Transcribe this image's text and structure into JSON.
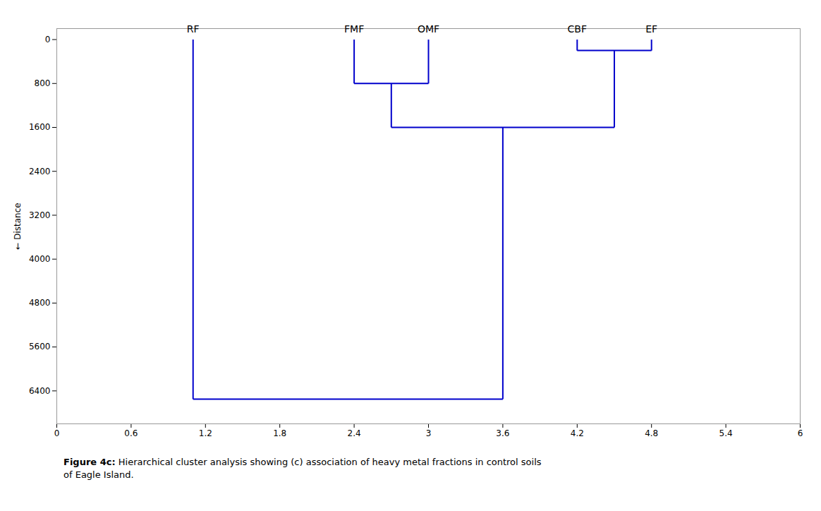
{
  "chart_data": {
    "type": "dendrogram",
    "ylabel": "Distance",
    "xlim": [
      0,
      6
    ],
    "ylim": [
      7000,
      -200
    ],
    "xticks": [
      0,
      0.6,
      1.2,
      1.8,
      2.4,
      3,
      3.6,
      4.2,
      4.8,
      5.4,
      6
    ],
    "yticks": [
      0,
      800,
      1600,
      2400,
      3200,
      4000,
      4800,
      5600,
      6400
    ],
    "color": "#0000CC",
    "grid": false,
    "caption_label": "Figure 4c:",
    "caption": "Hierarchical cluster analysis showing (c) association of heavy metal fractions in control soils\nof Eagle Island.",
    "leaves": [
      {
        "name": "RF",
        "x": 1.1,
        "height": 0
      },
      {
        "name": "FMF",
        "x": 2.4,
        "height": 0
      },
      {
        "name": "OMF",
        "x": 3.0,
        "height": 0
      },
      {
        "name": "CBF",
        "x": 4.2,
        "height": 0
      },
      {
        "name": "EF",
        "x": 4.8,
        "height": 0
      }
    ],
    "merges": [
      {
        "left_x": 2.4,
        "right_x": 3.0,
        "merge_x": 2.7,
        "height": 800
      },
      {
        "left_x": 4.2,
        "right_x": 4.8,
        "merge_x": 4.5,
        "height": 200
      },
      {
        "left_x": 2.7,
        "right_x": 4.5,
        "merge_x": 3.6,
        "height": 1600
      },
      {
        "left_x": 1.1,
        "right_x": 3.6,
        "merge_x": 2.35,
        "height": 6550
      }
    ]
  }
}
